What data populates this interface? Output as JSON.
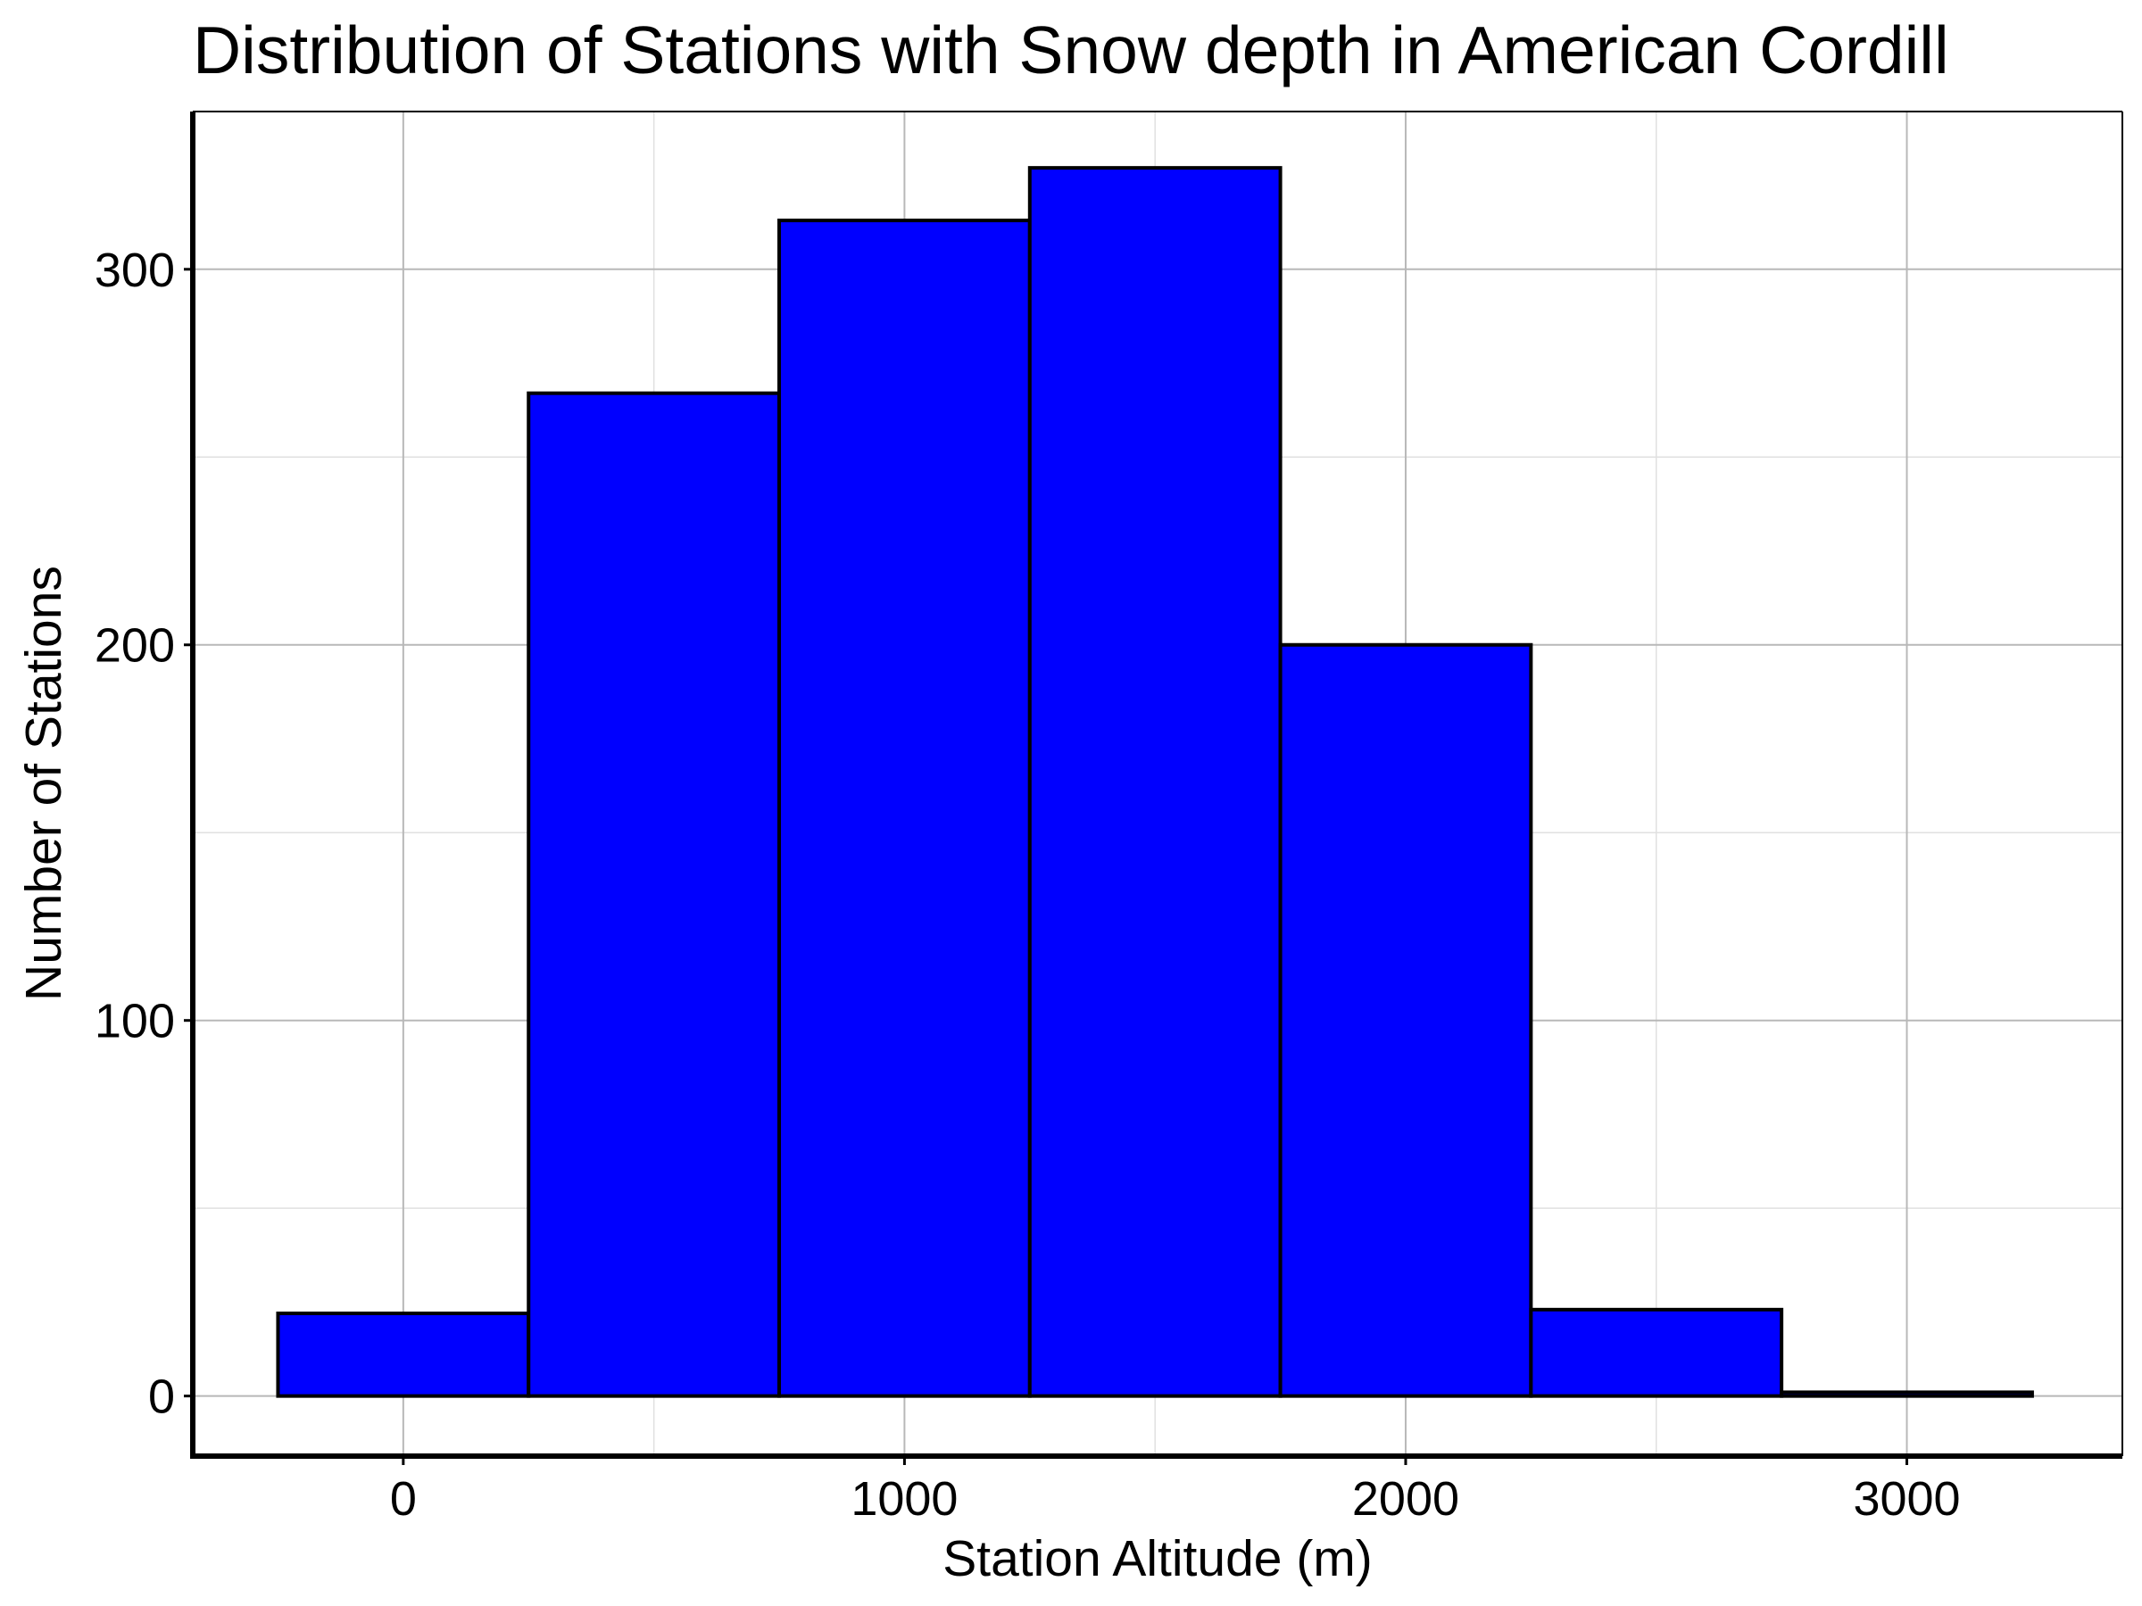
{
  "chart_data": {
    "type": "bar",
    "title": "Distribution of Stations with Snow depth in American Cordill",
    "xlabel": "Station Altitude (m)",
    "ylabel": "Number of Stations",
    "bins": [
      {
        "x_start": -250,
        "x_end": 250,
        "value": 22
      },
      {
        "x_start": 250,
        "x_end": 750,
        "value": 267
      },
      {
        "x_start": 750,
        "x_end": 1250,
        "value": 313
      },
      {
        "x_start": 1250,
        "x_end": 1750,
        "value": 327
      },
      {
        "x_start": 1750,
        "x_end": 2250,
        "value": 200
      },
      {
        "x_start": 2250,
        "x_end": 2750,
        "value": 23
      },
      {
        "x_start": 2750,
        "x_end": 3250,
        "value": 1
      }
    ],
    "xlim": [
      -420,
      3430
    ],
    "ylim": [
      -16,
      342
    ],
    "x_ticks": [
      0,
      1000,
      2000,
      3000
    ],
    "y_ticks": [
      0,
      100,
      200,
      300
    ],
    "grid": true,
    "bar_color": "#0000ff",
    "edge_color": "#000000"
  }
}
